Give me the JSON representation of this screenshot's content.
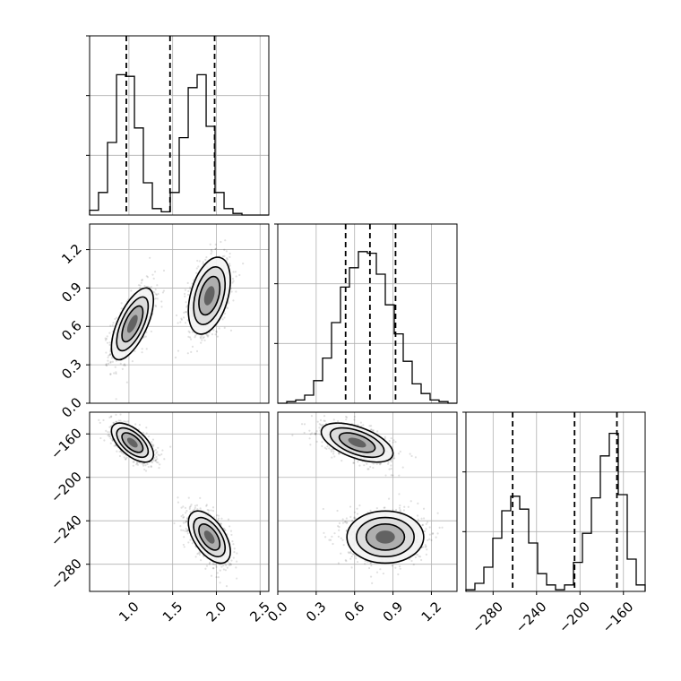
{
  "chart_data": {
    "type": "corner",
    "parameters": [
      {
        "range": [
          0.55,
          2.6
        ],
        "ticks": [
          1.0,
          1.5,
          2.0,
          2.5
        ],
        "tick_labels": [
          "1.0",
          "1.5",
          "2.0",
          "2.5"
        ],
        "quantiles": [
          0.97,
          1.47,
          1.98
        ],
        "hist_edges": [
          0.55,
          0.652,
          0.755,
          0.858,
          0.96,
          1.063,
          1.165,
          1.268,
          1.37,
          1.473,
          1.575,
          1.678,
          1.78,
          1.883,
          1.985,
          2.088,
          2.19,
          2.293,
          2.395,
          2.498,
          2.6
        ],
        "hist_counts": [
          0.03,
          0.14,
          0.45,
          0.87,
          0.86,
          0.54,
          0.2,
          0.04,
          0.02,
          0.14,
          0.48,
          0.79,
          0.87,
          0.55,
          0.14,
          0.04,
          0.01,
          0.0,
          0.0,
          0.0
        ]
      },
      {
        "range": [
          0.0,
          1.4
        ],
        "ticks": [
          0.0,
          0.3,
          0.6,
          0.9,
          1.2
        ],
        "tick_labels": [
          "0.0",
          "0.3",
          "0.6",
          "0.9",
          "1.2"
        ],
        "quantiles": [
          0.53,
          0.72,
          0.92
        ],
        "hist_edges": [
          0.0,
          0.07,
          0.14,
          0.21,
          0.28,
          0.35,
          0.42,
          0.49,
          0.56,
          0.63,
          0.7,
          0.77,
          0.84,
          0.91,
          0.98,
          1.05,
          1.12,
          1.19,
          1.26,
          1.33,
          1.4
        ],
        "hist_counts": [
          0.0,
          0.01,
          0.02,
          0.05,
          0.14,
          0.28,
          0.5,
          0.72,
          0.84,
          0.94,
          0.93,
          0.8,
          0.61,
          0.43,
          0.26,
          0.12,
          0.06,
          0.02,
          0.01,
          0.0
        ]
      },
      {
        "range": [
          -305,
          -140
        ],
        "ticks": [
          -280,
          -240,
          -200,
          -160
        ],
        "tick_labels": [
          "−280",
          "−240",
          "−200",
          "−160"
        ],
        "quantiles": [
          -262,
          -205,
          -166
        ],
        "hist_edges": [
          -305,
          -296.75,
          -288.5,
          -280.25,
          -272,
          -263.75,
          -255.5,
          -247.25,
          -239,
          -230.75,
          -222.5,
          -214.25,
          -206,
          -197.75,
          -189.5,
          -181.25,
          -173,
          -164.75,
          -156.5,
          -148.25,
          -140
        ],
        "hist_counts": [
          0.01,
          0.05,
          0.15,
          0.33,
          0.5,
          0.59,
          0.51,
          0.3,
          0.11,
          0.04,
          0.01,
          0.04,
          0.18,
          0.36,
          0.58,
          0.84,
          0.98,
          0.6,
          0.2,
          0.04
        ]
      }
    ],
    "clusters": [
      {
        "mean": [
          1.04,
          0.62,
          -168
        ],
        "sigma": [
          0.12,
          0.14,
          9
        ]
      },
      {
        "mean": [
          1.92,
          0.84,
          -255
        ],
        "sigma": [
          0.12,
          0.15,
          12
        ]
      }
    ],
    "pairs": [
      {
        "row": 1,
        "col": 0,
        "corr": [
          0.65,
          0.4
        ]
      },
      {
        "row": 2,
        "col": 0,
        "corr": [
          -0.6,
          -0.55
        ]
      },
      {
        "row": 2,
        "col": 1,
        "corr": [
          -0.55,
          0.0
        ]
      }
    ],
    "grid": true
  }
}
